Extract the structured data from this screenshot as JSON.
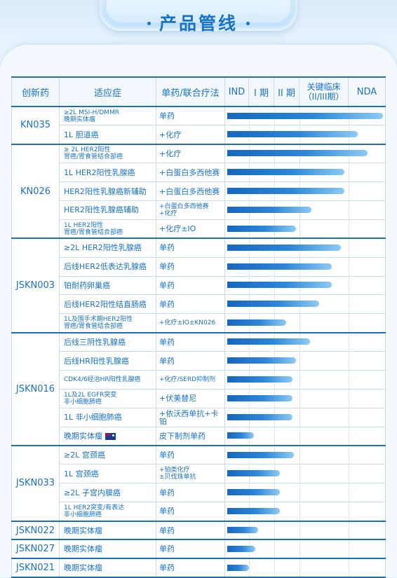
{
  "title": "产品管线",
  "headers": {
    "drug": "创新药",
    "indication": "适应症",
    "regimen": "单药/联合疗法",
    "phases": [
      "IND",
      "I 期",
      "II 期",
      "关键临床\n（II/III期）",
      "NDA"
    ]
  },
  "accent": "#1872c9",
  "groups": [
    {
      "drug": "KN035",
      "rows": [
        {
          "ind": "≥2L MSI-H/DMMR\n晚期实体瘤",
          "reg": "单药",
          "progress": 1.0
        },
        {
          "ind": "1L 胆道癌",
          "reg": "+化疗",
          "progress": 0.84
        }
      ]
    },
    {
      "drug": "KN026",
      "rows": [
        {
          "ind": "≥ 2L HER2阳性\n胃癌/胃食管结合部癌",
          "reg": "+化疗",
          "progress": 0.9
        },
        {
          "ind": "1L HER2阳性乳腺癌",
          "reg": "+白蛋白多西他赛",
          "progress": 0.75
        },
        {
          "ind": "HER2阳性乳腺癌新辅助",
          "reg": "+白蛋白多西他赛",
          "progress": 0.75
        },
        {
          "ind": "HER2阳性乳腺癌辅助",
          "reg": "+白蛋白多西他赛\n+化疗",
          "progress": 0.54
        },
        {
          "ind": "1L HER2阳性\n胃癌/胃食管结合部癌",
          "reg": "+化疗±IO",
          "progress": 0.44
        }
      ]
    },
    {
      "drug": "JSKN003",
      "rows": [
        {
          "ind": "≥2L HER2阳性乳腺癌",
          "reg": "单药",
          "progress": 0.73
        },
        {
          "ind": "后线HER2低表达乳腺癌",
          "reg": "单药",
          "progress": 0.67
        },
        {
          "ind": "铂耐药卵巢癌",
          "reg": "单药",
          "progress": 0.67
        },
        {
          "ind": "后线HER2阳性结直肠癌",
          "reg": "单药",
          "progress": 0.59
        },
        {
          "ind": "1L及围手术期HER2阳性\n胃癌/胃食管结合部癌",
          "reg": "+化疗±IO±KN026",
          "progress": 0.38
        }
      ]
    },
    {
      "drug": "JSKN016",
      "rows": [
        {
          "ind": "后线三阴性乳腺癌",
          "reg": "单药",
          "progress": 0.53
        },
        {
          "ind": "后线HR阳性乳腺癌",
          "reg": "单药",
          "progress": 0.44
        },
        {
          "ind": "CDK4/6经治HR阳性乳腺癌",
          "reg": "+化疗/SERD抑制剂",
          "progress": 0.42
        },
        {
          "ind": "1L及2L EGFR突变\n非小细胞肺癌",
          "reg": "+伏美替尼",
          "progress": 0.42
        },
        {
          "ind": "1L 非小细胞肺癌",
          "reg": "+依沃西单抗+卡铂",
          "progress": 0.42
        },
        {
          "ind": "晚期实体瘤",
          "reg": "皮下制剂单药",
          "progress": 0.17,
          "flag": true
        }
      ]
    },
    {
      "drug": "JSKN033",
      "rows": [
        {
          "ind": "≥2L 宫颈癌",
          "reg": "单药",
          "progress": 0.43
        },
        {
          "ind": "1L 宫颈癌",
          "reg": "+铂类化疗\n±贝伐珠单抗",
          "progress": 0.34
        },
        {
          "ind": "≥2L 子宫内膜癌",
          "reg": "单药",
          "progress": 0.34
        },
        {
          "ind": "1L HER2突变/有表达\n非小细胞肺癌",
          "reg": "单药",
          "progress": 0.34
        }
      ]
    },
    {
      "drug": "JSKN022",
      "rows": [
        {
          "ind": "晚期实体瘤",
          "reg": "单药",
          "progress": 0.2
        }
      ]
    },
    {
      "drug": "JSKN027",
      "rows": [
        {
          "ind": "晚期实体瘤",
          "reg": "单药",
          "progress": 0.18
        }
      ]
    },
    {
      "drug": "JSKN021",
      "rows": [
        {
          "ind": "晚期实体瘤",
          "reg": "单药",
          "progress": 0.14
        }
      ]
    }
  ]
}
